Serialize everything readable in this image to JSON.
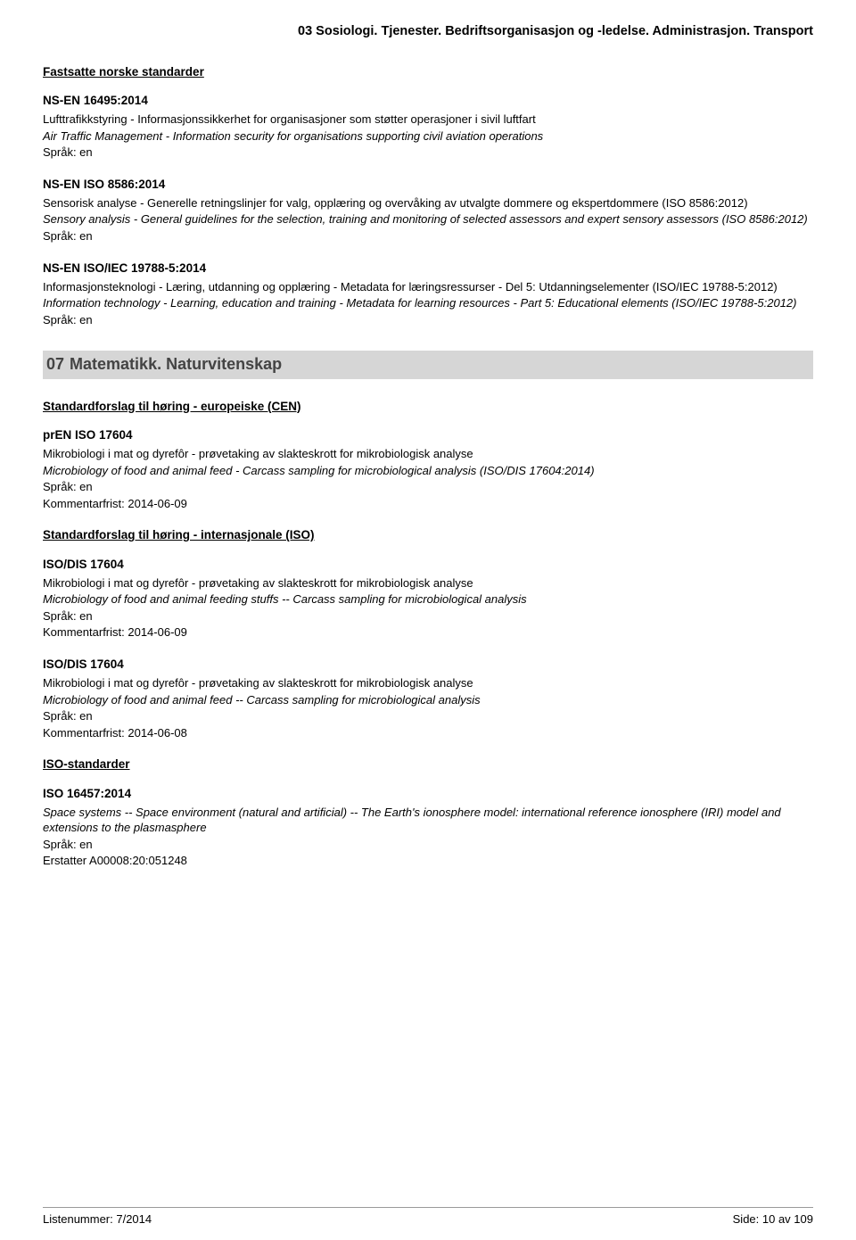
{
  "header": {
    "title": "03 Sosiologi. Tjenester. Bedriftsorganisasjon og -ledelse. Administrasjon. Transport"
  },
  "section1": {
    "heading": "Fastsatte norske standarder",
    "entries": [
      {
        "code": "NS-EN 16495:2014",
        "no": "Lufttrafikkstyring - Informasjonssikkerhet for organisasjoner som støtter operasjoner i sivil luftfart",
        "en": "Air Traffic Management - Information security for organisations supporting civil aviation operations",
        "lang": "Språk: en"
      },
      {
        "code": "NS-EN ISO 8586:2014",
        "no": "Sensorisk analyse - Generelle retningslinjer for valg, opplæring og overvåking av utvalgte dommere og ekspertdommere (ISO 8586:2012)",
        "en": "Sensory analysis - General guidelines for the selection, training and monitoring of selected assessors and expert sensory assessors (ISO 8586:2012)",
        "lang": "Språk: en"
      },
      {
        "code": "NS-EN ISO/IEC 19788-5:2014",
        "no": "Informasjonsteknologi - Læring, utdanning og opplæring - Metadata for læringsressurser - Del 5: Utdanningselementer (ISO/IEC 19788-5:2012)",
        "en": "Information technology - Learning, education and training - Metadata for learning resources - Part 5: Educational elements (ISO/IEC 19788-5:2012)",
        "lang": "Språk: en"
      }
    ]
  },
  "category": {
    "num": "07",
    "title": "Matematikk. Naturvitenskap"
  },
  "section2": {
    "heading": "Standardforslag til høring - europeiske (CEN)",
    "entries": [
      {
        "code": "prEN ISO 17604",
        "no": "Mikrobiologi i mat og dyrefôr - prøvetaking av slakteskrott for mikrobiologisk analyse",
        "en": "Microbiology of food and animal feed - Carcass sampling for microbiological analysis (ISO/DIS 17604:2014)",
        "lang": "Språk: en",
        "extra": "Kommentarfrist: 2014-06-09"
      }
    ]
  },
  "section3": {
    "heading": "Standardforslag til høring - internasjonale (ISO)",
    "entries": [
      {
        "code": "ISO/DIS 17604",
        "no": "Mikrobiologi i mat og dyrefôr - prøvetaking av slakteskrott for mikrobiologisk analyse",
        "en": "Microbiology of food and animal feeding stuffs -- Carcass sampling for microbiological analysis",
        "lang": "Språk: en",
        "extra": "Kommentarfrist: 2014-06-09"
      },
      {
        "code": "ISO/DIS 17604",
        "no": "Mikrobiologi i mat og dyrefôr - prøvetaking av slakteskrott for mikrobiologisk analyse",
        "en": "Microbiology of food and animal feed -- Carcass sampling for microbiological analysis",
        "lang": "Språk: en",
        "extra": "Kommentarfrist: 2014-06-08"
      }
    ]
  },
  "section4": {
    "heading": "ISO-standarder",
    "entries": [
      {
        "code": "ISO 16457:2014",
        "no": "",
        "en": "Space systems -- Space environment (natural and artificial) -- The Earth's ionosphere model: international reference ionosphere (IRI) model and extensions to the plasmasphere",
        "lang": "Språk: en",
        "extra": "Erstatter A00008:20:051248"
      }
    ]
  },
  "footer": {
    "left": "Listenummer: 7/2014",
    "right": "Side: 10 av 109"
  }
}
